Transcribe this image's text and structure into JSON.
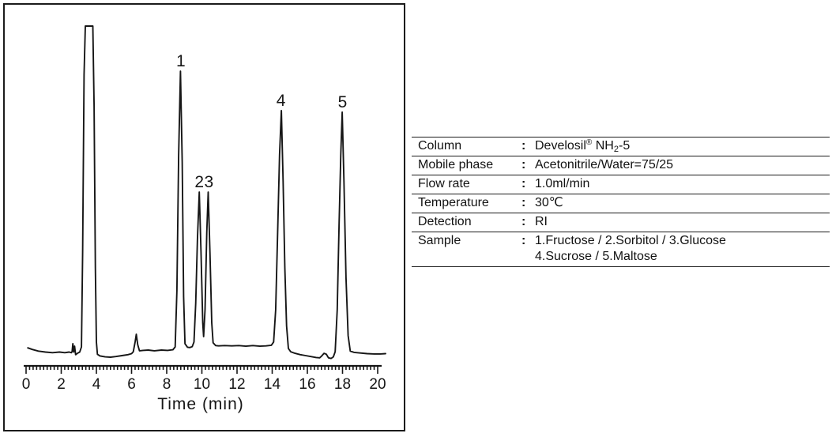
{
  "figure": {
    "background": "#ffffff",
    "ink_color": "#161616",
    "description_visible_text_only": true
  },
  "chart_data": {
    "type": "line",
    "kind": "HPLC chromatogram",
    "title": "",
    "xlabel": "Time (min)",
    "ylabel": "",
    "xlim": [
      0,
      20
    ],
    "x_major_tick_step": 2,
    "x_minor_tick_step": 0.2,
    "x_tick_labels": [
      "0",
      "2",
      "4",
      "6",
      "8",
      "10",
      "12",
      "14",
      "16",
      "18",
      "20"
    ],
    "grid": false,
    "legend": false,
    "y_axis_shown": false,
    "peaks": [
      {
        "label": "1",
        "compound": "Fructose",
        "retention_min": 8.8,
        "height_rel": 86.0
      },
      {
        "label": "2",
        "compound": "Sorbitol",
        "retention_min": 9.85,
        "height_rel": 48.5
      },
      {
        "label": "3",
        "compound": "Glucose",
        "retention_min": 10.4,
        "height_rel": 48.5
      },
      {
        "label": "4",
        "compound": "Sucrose",
        "retention_min": 14.5,
        "height_rel": 73.8
      },
      {
        "label": "5",
        "compound": "Maltose",
        "retention_min": 18.0,
        "height_rel": 73.3
      }
    ],
    "unlabeled_features": [
      {
        "feature": "solvent-front-peak",
        "time_min": 3.6,
        "height_rel": 100,
        "clipped_at_top": true
      },
      {
        "feature": "minor-peak",
        "time_min": 6.3,
        "height_rel": 4.4
      },
      {
        "feature": "baseline-blip",
        "time_min": 2.8
      },
      {
        "feature": "baseline-bump",
        "time_min": 17.0
      }
    ],
    "trace": [
      [
        0.1,
        0.2
      ],
      [
        0.35,
        -0.3
      ],
      [
        0.7,
        -0.8
      ],
      [
        1.1,
        -1.1
      ],
      [
        1.5,
        -1.3
      ],
      [
        1.9,
        -1.1
      ],
      [
        2.2,
        -1.3
      ],
      [
        2.45,
        -1.1
      ],
      [
        2.58,
        -1.3
      ],
      [
        2.62,
        -0.9
      ],
      [
        2.66,
        1.5
      ],
      [
        2.71,
        -1.1
      ],
      [
        2.76,
        0.7
      ],
      [
        2.82,
        -1.9
      ],
      [
        2.92,
        -1.5
      ],
      [
        3.05,
        -1.1
      ],
      [
        3.15,
        0.5
      ],
      [
        3.22,
        30
      ],
      [
        3.3,
        85
      ],
      [
        3.37,
        100
      ],
      [
        3.8,
        100
      ],
      [
        3.87,
        75
      ],
      [
        3.94,
        25
      ],
      [
        4.0,
        2
      ],
      [
        4.06,
        -1.8
      ],
      [
        4.2,
        -2.3
      ],
      [
        4.5,
        -2.6
      ],
      [
        4.8,
        -2.7
      ],
      [
        5.1,
        -2.5
      ],
      [
        5.45,
        -2.2
      ],
      [
        5.8,
        -1.9
      ],
      [
        6.0,
        -1.6
      ],
      [
        6.1,
        -1.0
      ],
      [
        6.2,
        2.0
      ],
      [
        6.27,
        4.4
      ],
      [
        6.35,
        1.2
      ],
      [
        6.45,
        -0.7
      ],
      [
        6.65,
        -0.6
      ],
      [
        6.95,
        -0.5
      ],
      [
        7.3,
        -0.7
      ],
      [
        7.7,
        -0.5
      ],
      [
        8.05,
        -0.6
      ],
      [
        8.35,
        -0.4
      ],
      [
        8.48,
        0.5
      ],
      [
        8.58,
        18
      ],
      [
        8.68,
        60
      ],
      [
        8.78,
        86
      ],
      [
        8.88,
        58
      ],
      [
        8.96,
        16
      ],
      [
        9.04,
        1.5
      ],
      [
        9.18,
        0.4
      ],
      [
        9.32,
        0.3
      ],
      [
        9.45,
        0.6
      ],
      [
        9.55,
        2
      ],
      [
        9.65,
        14
      ],
      [
        9.75,
        34
      ],
      [
        9.85,
        48.5
      ],
      [
        9.95,
        30
      ],
      [
        10.05,
        8
      ],
      [
        10.1,
        3.7
      ],
      [
        10.18,
        12
      ],
      [
        10.28,
        36
      ],
      [
        10.36,
        48.5
      ],
      [
        10.46,
        30
      ],
      [
        10.56,
        8
      ],
      [
        10.64,
        1.8
      ],
      [
        10.78,
        0.9
      ],
      [
        10.95,
        0.8
      ],
      [
        11.3,
        0.9
      ],
      [
        11.7,
        0.8
      ],
      [
        12.1,
        0.9
      ],
      [
        12.5,
        0.7
      ],
      [
        12.9,
        0.9
      ],
      [
        13.3,
        0.7
      ],
      [
        13.65,
        0.8
      ],
      [
        13.95,
        1.0
      ],
      [
        14.08,
        2
      ],
      [
        14.2,
        12
      ],
      [
        14.32,
        38
      ],
      [
        14.42,
        60
      ],
      [
        14.52,
        73.8
      ],
      [
        14.62,
        52
      ],
      [
        14.72,
        25
      ],
      [
        14.82,
        7
      ],
      [
        14.92,
        0
      ],
      [
        15.05,
        -1.0
      ],
      [
        15.3,
        -1.5
      ],
      [
        15.6,
        -1.9
      ],
      [
        15.9,
        -2.2
      ],
      [
        16.2,
        -2.5
      ],
      [
        16.5,
        -2.8
      ],
      [
        16.7,
        -2.9
      ],
      [
        16.82,
        -2.3
      ],
      [
        16.95,
        -1.5
      ],
      [
        17.08,
        -1.8
      ],
      [
        17.2,
        -2.9
      ],
      [
        17.35,
        -3.1
      ],
      [
        17.48,
        -2.6
      ],
      [
        17.58,
        -1.0
      ],
      [
        17.7,
        12
      ],
      [
        17.8,
        38
      ],
      [
        17.9,
        60
      ],
      [
        17.98,
        73.3
      ],
      [
        18.08,
        52
      ],
      [
        18.2,
        22
      ],
      [
        18.32,
        4
      ],
      [
        18.44,
        -0.8
      ],
      [
        18.65,
        -1.2
      ],
      [
        19.0,
        -1.4
      ],
      [
        19.4,
        -1.6
      ],
      [
        19.8,
        -1.7
      ],
      [
        20.15,
        -1.7
      ],
      [
        20.45,
        -1.6
      ]
    ]
  },
  "conditions": {
    "colon": ":",
    "rows": [
      {
        "name": "column",
        "label": "Column",
        "value_lines": [
          [
            [
              "Develosil",
              "n"
            ],
            [
              "®",
              "sup"
            ],
            [
              " NH",
              "n"
            ],
            [
              "2",
              "sub"
            ],
            [
              "-5",
              "n"
            ]
          ]
        ]
      },
      {
        "name": "mobile-phase",
        "label": "Mobile phase",
        "value_lines": [
          [
            [
              "Acetonitrile/Water=75/25",
              "n"
            ]
          ]
        ]
      },
      {
        "name": "flow-rate",
        "label": "Flow rate",
        "value_lines": [
          [
            [
              "1.0ml/min",
              "n"
            ]
          ]
        ]
      },
      {
        "name": "temperature",
        "label": "Temperature",
        "value_lines": [
          [
            [
              "30℃",
              "n"
            ]
          ]
        ]
      },
      {
        "name": "detection",
        "label": "Detection",
        "value_lines": [
          [
            [
              "RI",
              "n"
            ]
          ]
        ]
      },
      {
        "name": "sample",
        "label": "Sample",
        "value_lines": [
          [
            [
              "1.Fructose / 2.Sorbitol / 3.Glucose",
              "n"
            ]
          ],
          [
            [
              "4.Sucrose / 5.Maltose",
              "n"
            ]
          ]
        ]
      }
    ]
  }
}
